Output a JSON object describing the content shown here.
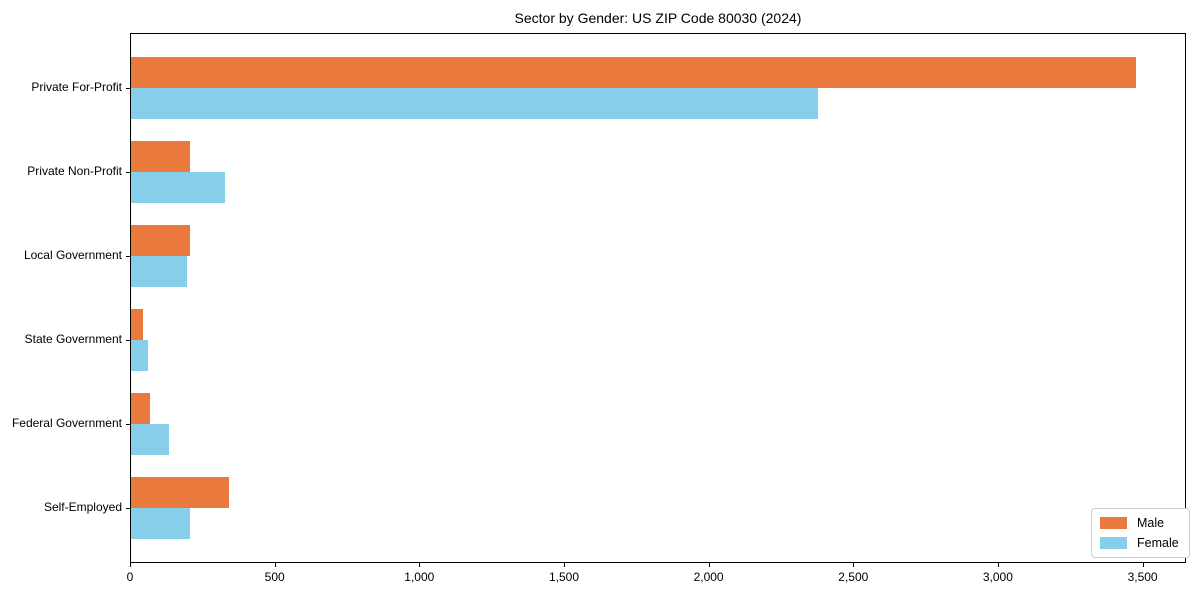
{
  "title": "Sector by Gender: US ZIP Code 80030 (2024)",
  "chart_data": {
    "type": "bar",
    "orientation": "horizontal",
    "title": "Sector by Gender: US ZIP Code 80030 (2024)",
    "xlabel": "",
    "ylabel": "",
    "categories": [
      "Private For-Profit",
      "Private Non-Profit",
      "Local Government",
      "State Government",
      "Federal Government",
      "Self-Employed"
    ],
    "series": [
      {
        "name": "Male",
        "color": "#e9793c",
        "values": [
          3475,
          205,
          205,
          40,
          65,
          340
        ]
      },
      {
        "name": "Female",
        "color": "#87ceeb",
        "values": [
          2375,
          325,
          195,
          60,
          130,
          205
        ]
      }
    ],
    "xlim": [
      0,
      3650
    ],
    "x_ticks": [
      0,
      500,
      1000,
      1500,
      2000,
      2500,
      3000,
      3500
    ],
    "x_tick_labels": [
      "0",
      "500",
      "1,000",
      "1,500",
      "2,000",
      "2,500",
      "3,000",
      "3,500"
    ],
    "legend_position": "lower right",
    "grid": false,
    "background_color": "#ffffff",
    "axis_color": "#000000"
  }
}
